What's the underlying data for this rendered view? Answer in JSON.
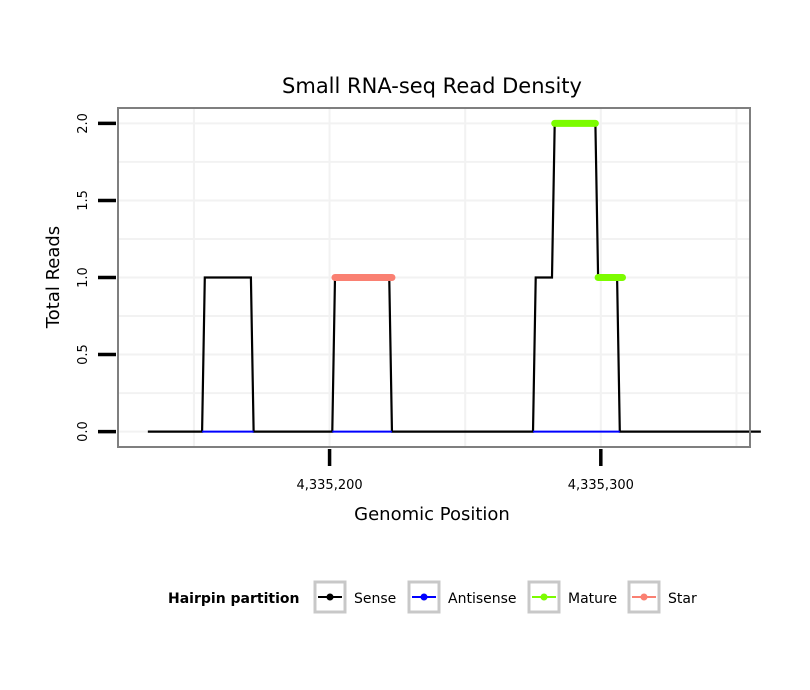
{
  "chart_data": {
    "type": "line",
    "title": "Small RNA-seq Read Density",
    "xlabel": "Genomic Position",
    "ylabel": "Total Reads",
    "xlim": [
      4335122,
      4335355
    ],
    "ylim": [
      -0.1,
      2.1
    ],
    "grid": true,
    "x_ticks": [
      {
        "value": 4335200,
        "label": "4,335,200"
      },
      {
        "value": 4335300,
        "label": "4,335,300"
      }
    ],
    "y_ticks": [
      {
        "value": 0.0,
        "label": "0.0"
      },
      {
        "value": 0.5,
        "label": "0.5"
      },
      {
        "value": 1.0,
        "label": "1.0"
      },
      {
        "value": 1.5,
        "label": "1.5"
      },
      {
        "value": 2.0,
        "label": "2.0"
      }
    ],
    "legend": {
      "title": "Hairpin partition",
      "position": "bottom",
      "entries": [
        {
          "name": "Sense",
          "color": "#000000"
        },
        {
          "name": "Antisense",
          "color": "#0000ff"
        },
        {
          "name": "Mature",
          "color": "#7cfc00"
        },
        {
          "name": "Star",
          "color": "#fa8072"
        }
      ]
    },
    "series": [
      {
        "name": "Sense",
        "color": "#000000",
        "x": [
          4335133,
          4335153,
          4335154,
          4335171,
          4335172,
          4335201,
          4335202,
          4335222,
          4335223,
          4335275,
          4335276,
          4335282,
          4335283,
          4335298,
          4335299,
          4335306,
          4335307,
          4335359
        ],
        "y": [
          0,
          0,
          1,
          1,
          0,
          0,
          1,
          1,
          0,
          0,
          1,
          1,
          2,
          2,
          1,
          1,
          0,
          0
        ]
      },
      {
        "name": "Antisense",
        "color": "#0000ff",
        "segments": [
          {
            "x": [
              4335153,
              4335172
            ],
            "y": [
              0,
              0
            ]
          },
          {
            "x": [
              4335201,
              4335223
            ],
            "y": [
              0,
              0
            ]
          },
          {
            "x": [
              4335275,
              4335307
            ],
            "y": [
              0,
              0
            ]
          }
        ]
      },
      {
        "name": "Mature",
        "color": "#7cfc00",
        "segments": [
          {
            "x": [
              4335283,
              4335298
            ],
            "y": [
              2,
              2
            ]
          },
          {
            "x": [
              4335299,
              4335308
            ],
            "y": [
              1,
              1
            ]
          }
        ]
      },
      {
        "name": "Star",
        "color": "#fa8072",
        "segments": [
          {
            "x": [
              4335202,
              4335223
            ],
            "y": [
              1,
              1
            ]
          }
        ]
      }
    ]
  }
}
